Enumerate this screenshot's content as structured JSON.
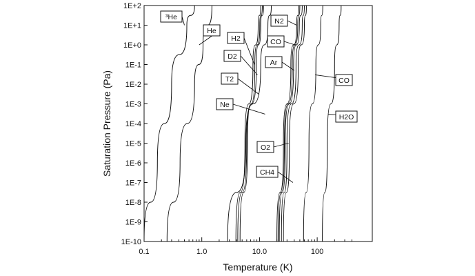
{
  "chart_data": {
    "type": "line",
    "title": "",
    "xlabel": "Temperature (K)",
    "ylabel": "Saturation Pressure (Pa)",
    "xscale": "log",
    "yscale": "log",
    "xlim": [
      0.1,
      400
    ],
    "ylim": [
      1e-10,
      100
    ],
    "grid": false,
    "x_ticks": [
      "0.1",
      "1.0",
      "10.0",
      "100"
    ],
    "y_ticks": [
      "1E-10",
      "1E-9",
      "1E-8",
      "1E-7",
      "1E-6",
      "1E-5",
      "1E-4",
      "1E-3",
      "1E-2",
      "1E-1",
      "1E+0",
      "1E+1",
      "1E+2"
    ],
    "series": [
      {
        "name": "³He",
        "points": [
          [
            0.1,
            1e-10
          ],
          [
            0.17,
            1e-06
          ],
          [
            0.3,
            0.01
          ],
          [
            0.55,
            10
          ],
          [
            0.75,
            100
          ]
        ]
      },
      {
        "name": "He",
        "points": [
          [
            0.25,
            1e-10
          ],
          [
            0.42,
            1e-06
          ],
          [
            0.75,
            0.01
          ],
          [
            1.05,
            1
          ],
          [
            1.5,
            100
          ]
        ]
      },
      {
        "name": "H2",
        "points": [
          [
            3.9,
            1e-10
          ],
          [
            5.6,
            1e-05
          ],
          [
            7.7,
            0.1
          ],
          [
            9.5,
            10
          ],
          [
            10.5,
            100
          ]
        ]
      },
      {
        "name": "D2",
        "points": [
          [
            4.6,
            1e-10
          ],
          [
            6.2,
            1e-05
          ],
          [
            8.3,
            0.1
          ],
          [
            10.1,
            10
          ],
          [
            11.2,
            100
          ]
        ]
      },
      {
        "name": "T2",
        "points": [
          [
            4.2,
            1e-10
          ],
          [
            6.0,
            1e-05
          ],
          [
            8.8,
            0.1
          ],
          [
            10.5,
            10
          ],
          [
            11.8,
            100
          ]
        ]
      },
      {
        "name": "Ne",
        "points": [
          [
            2.8,
            1e-10
          ],
          [
            5.8,
            1e-05
          ],
          [
            10.5,
            0.1
          ],
          [
            14,
            10
          ],
          [
            16,
            100
          ]
        ]
      },
      {
        "name": "N2",
        "points": [
          [
            20,
            1e-10
          ],
          [
            26,
            1e-05
          ],
          [
            35,
            0.1
          ],
          [
            44,
            10
          ],
          [
            48,
            100
          ]
        ]
      },
      {
        "name": "CO",
        "points": [
          [
            21,
            1e-10
          ],
          [
            27,
            1e-05
          ],
          [
            37,
            0.1
          ],
          [
            46,
            10
          ],
          [
            50,
            100
          ]
        ]
      },
      {
        "name": "Ar",
        "points": [
          [
            22,
            1e-10
          ],
          [
            28,
            1e-05
          ],
          [
            39,
            0.1
          ],
          [
            49,
            10
          ],
          [
            55,
            100
          ]
        ]
      },
      {
        "name": "O2",
        "points": [
          [
            24,
            1e-10
          ],
          [
            30,
            1e-05
          ],
          [
            43,
            0.1
          ],
          [
            55,
            10
          ],
          [
            60,
            100
          ]
        ]
      },
      {
        "name": "CH4",
        "points": [
          [
            26,
            1e-10
          ],
          [
            33,
            1e-05
          ],
          [
            47,
            0.1
          ],
          [
            60,
            10
          ],
          [
            65,
            100
          ]
        ]
      },
      {
        "name": "CO",
        "points": [
          [
            58,
            1e-10
          ],
          [
            72,
            1e-05
          ],
          [
            95,
            0.1
          ],
          [
            115,
            10
          ],
          [
            125,
            100
          ]
        ]
      },
      {
        "name": "H2O",
        "points": [
          [
            123,
            1e-10
          ],
          [
            150,
            1e-05
          ],
          [
            200,
            0.1
          ],
          [
            240,
            10
          ],
          [
            260,
            100
          ]
        ]
      }
    ],
    "annotations": [
      {
        "text": "³He",
        "anchor": [
          0.5,
          10
        ]
      },
      {
        "text": "He",
        "anchor": [
          0.9,
          1
        ]
      },
      {
        "text": "H2",
        "anchor": [
          8.2,
          0.1
        ]
      },
      {
        "text": "D2",
        "anchor": [
          9.2,
          0.03
        ]
      },
      {
        "text": "T2",
        "anchor": [
          9.9,
          0.003
        ]
      },
      {
        "text": "Ne",
        "anchor": [
          12.5,
          0.0003
        ]
      },
      {
        "text": "N2",
        "anchor": [
          44,
          10
        ]
      },
      {
        "text": "CO",
        "anchor": [
          41,
          1
        ]
      },
      {
        "text": "Ar",
        "anchor": [
          40,
          0.05
        ]
      },
      {
        "text": "CO",
        "anchor": [
          92,
          0.03
        ]
      },
      {
        "text": "H2O",
        "anchor": [
          155,
          0.0003
        ]
      },
      {
        "text": "O2",
        "anchor": [
          32,
          1e-05
        ]
      },
      {
        "text": "CH4",
        "anchor": [
          38,
          1e-07
        ]
      }
    ]
  }
}
